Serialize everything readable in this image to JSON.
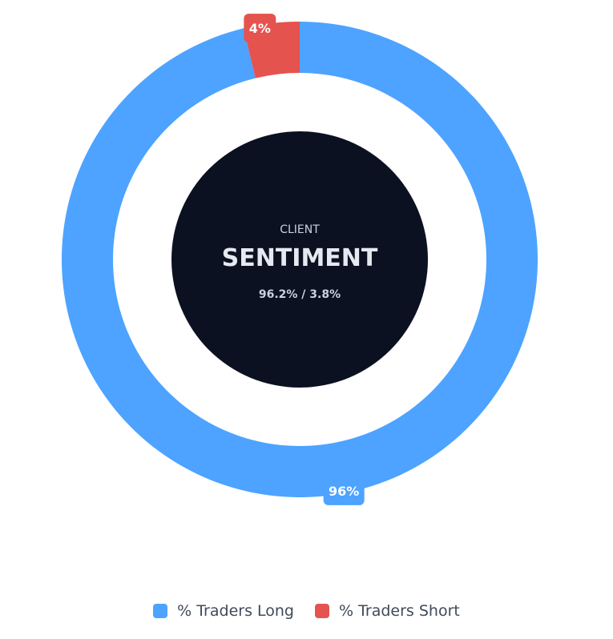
{
  "chart_data": {
    "type": "pie",
    "variant": "donut",
    "categories": [
      "% Traders Long",
      "% Traders Short"
    ],
    "values": [
      96.2,
      3.8
    ],
    "data_labels": [
      "96%",
      "4%"
    ],
    "colors": [
      "#4da3ff",
      "#e5534f"
    ],
    "center": {
      "eyebrow": "CLIENT",
      "title": "SENTIMENT",
      "subtitle": "96.2% / 3.8%",
      "fill": "#0b1120"
    },
    "legend_position": "bottom-center"
  },
  "legend": {
    "items": [
      {
        "label": "% Traders Long",
        "color": "#4da3ff"
      },
      {
        "label": "% Traders Short",
        "color": "#e5534f"
      }
    ]
  }
}
